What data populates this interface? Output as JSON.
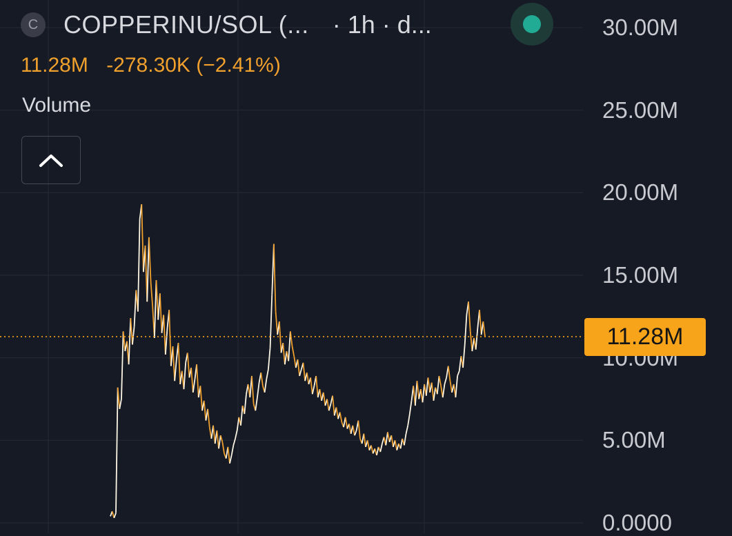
{
  "header": {
    "coin_letter": "C",
    "symbol": "COPPERINU/SOL (...",
    "interval": "· 1h · d...",
    "last_value": "11.28M",
    "change": "-278.30K (−2.41%)",
    "status_color": "#22ab94"
  },
  "indicator": {
    "label": "Volume",
    "collapse_icon": "chevron-up-icon"
  },
  "colors": {
    "background": "#161a25",
    "accent": "#f7a41a",
    "series_up": "#fef6e4",
    "series_down": "#f0a02c",
    "grid": "#242832"
  },
  "chart_data": {
    "type": "line",
    "series": [
      {
        "values": [
          0.4,
          0.7,
          0.3,
          0.6,
          8.2,
          6.9,
          7.5,
          11.6,
          10.4,
          11.0,
          9.6,
          12.4,
          10.8,
          11.9,
          14.1,
          12.8,
          18.4,
          19.3,
          15.2,
          16.8,
          13.4,
          17.3,
          14.6,
          13.1,
          11.2,
          14.7,
          12.3,
          13.9,
          11.5,
          12.6,
          10.2,
          11.8,
          12.9,
          9.5,
          10.7,
          8.6,
          9.9,
          10.9,
          8.4,
          9.2,
          8.1,
          9.7,
          10.3,
          8.8,
          9.4,
          7.9,
          8.7,
          9.6,
          7.6,
          8.3,
          6.8,
          7.4,
          6.2,
          6.9,
          5.8,
          5.1,
          5.9,
          4.8,
          5.6,
          4.5,
          5.3,
          4.9,
          4.2,
          3.9,
          4.6,
          3.6,
          4.1,
          4.7,
          5.1,
          5.6,
          6.4,
          5.9,
          7.1,
          6.6,
          7.8,
          8.4,
          7.6,
          8.9,
          7.2,
          6.8,
          7.6,
          8.5,
          9.1,
          8.3,
          7.9,
          8.7,
          9.3,
          10.6,
          13.8,
          16.9,
          12.8,
          11.4,
          12.2,
          10.3,
          10.9,
          9.6,
          10.4,
          9.8,
          11.6,
          10.7,
          10.1,
          9.4,
          9.9,
          8.9,
          9.3,
          9.7,
          8.6,
          9.1,
          8.4,
          8.8,
          7.8,
          8.3,
          8.9,
          7.6,
          8.1,
          7.4,
          7.9,
          7.1,
          7.5,
          6.8,
          7.2,
          7.7,
          6.5,
          7.0,
          6.3,
          6.7,
          6.1,
          5.8,
          6.4,
          5.7,
          6.0,
          5.4,
          5.9,
          5.3,
          5.6,
          6.2,
          5.1,
          4.8,
          5.4,
          4.6,
          5.0,
          4.4,
          4.7,
          4.2,
          4.5,
          4.1,
          4.6,
          4.3,
          4.8,
          5.2,
          4.7,
          5.5,
          4.9,
          5.3,
          4.6,
          5.0,
          4.4,
          4.8,
          4.5,
          5.1,
          4.7,
          5.4,
          5.9,
          6.6,
          7.4,
          8.3,
          7.1,
          8.6,
          7.5,
          8.1,
          7.3,
          8.4,
          7.7,
          8.8,
          7.9,
          8.5,
          7.4,
          8.2,
          7.8,
          8.9,
          8.3,
          7.6,
          8.4,
          8.8,
          9.5,
          8.6,
          7.9,
          8.4,
          7.6,
          8.9,
          9.2,
          10.1,
          9.4,
          10.8,
          12.6,
          13.4,
          11.6,
          10.4,
          11.2,
          10.5,
          11.8,
          12.9,
          11.4,
          12.2,
          11.28
        ]
      }
    ],
    "last_value": 11.28,
    "ylim": [
      0,
      30
    ],
    "y_ticks": [
      "30.00M",
      "25.00M",
      "20.00M",
      "15.00M",
      "10.00M",
      "5.00M",
      "0.0000"
    ],
    "y_tick_values": [
      30,
      25,
      20,
      15,
      10,
      5,
      0
    ],
    "grid": true
  }
}
